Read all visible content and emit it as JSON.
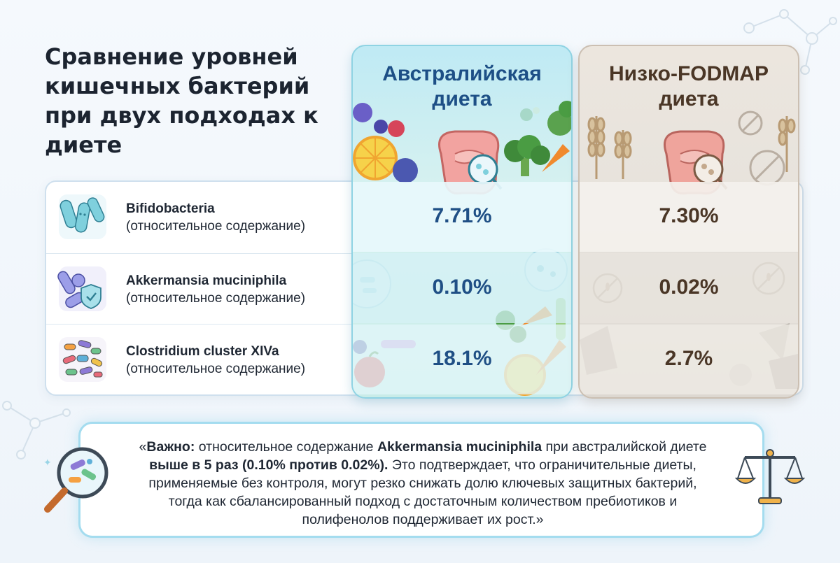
{
  "title": "Сравнение уровней кишечных бактерий при двух подходах к диете",
  "columns": {
    "australian": {
      "header": "Австралийская диета"
    },
    "low_fodmap": {
      "header": "Низко-FODMAP диета"
    }
  },
  "rows": [
    {
      "name": "Bifidobacteria",
      "sub": "(относительное содержание)",
      "australian": "7.71%",
      "low_fodmap": "7.30%"
    },
    {
      "name": "Akkermansia muciniphila",
      "sub": "(относительное содержание)",
      "australian": "0.10%",
      "low_fodmap": "0.02%"
    },
    {
      "name": "Clostridium cluster XIVa",
      "sub": "(относительное содержание)",
      "australian": "18.1%",
      "low_fodmap": "2.7%"
    }
  ],
  "note": {
    "open_quote": "«",
    "important_label": "Важно:",
    "part1": " относительное содержание ",
    "species": "Akkermansia muciniphila",
    "part2": " при австралийской диете ",
    "emphasis": "выше в 5 раз (0.10% против 0.02%).",
    "part3": " Это подтверждает, что ограничительные диеты, применяемые без контроля, могут резко снижать долю ключевых защитных бактерий, тогда как сбалансированный подход с достаточным количеством пребиотиков и полифенолов поддерживает их рост.»"
  },
  "icons": {
    "bifido": "bacteria-rods-icon",
    "akkermansia": "bacteria-shield-icon",
    "clostridium": "bacteria-cluster-icon",
    "australian": "intestine-fruit-vegetables-icon",
    "low_fodmap": "intestine-wheat-icon",
    "magnifier": "magnifier-bacteria-icon",
    "scale": "balance-scale-icon"
  },
  "colors": {
    "australian_accent": "#1d4f86",
    "low_fodmap_accent": "#4a3626",
    "australian_bg": "#c9ece8",
    "low_fodmap_bg": "#e6e2dc",
    "note_border": "#a4dcef"
  }
}
